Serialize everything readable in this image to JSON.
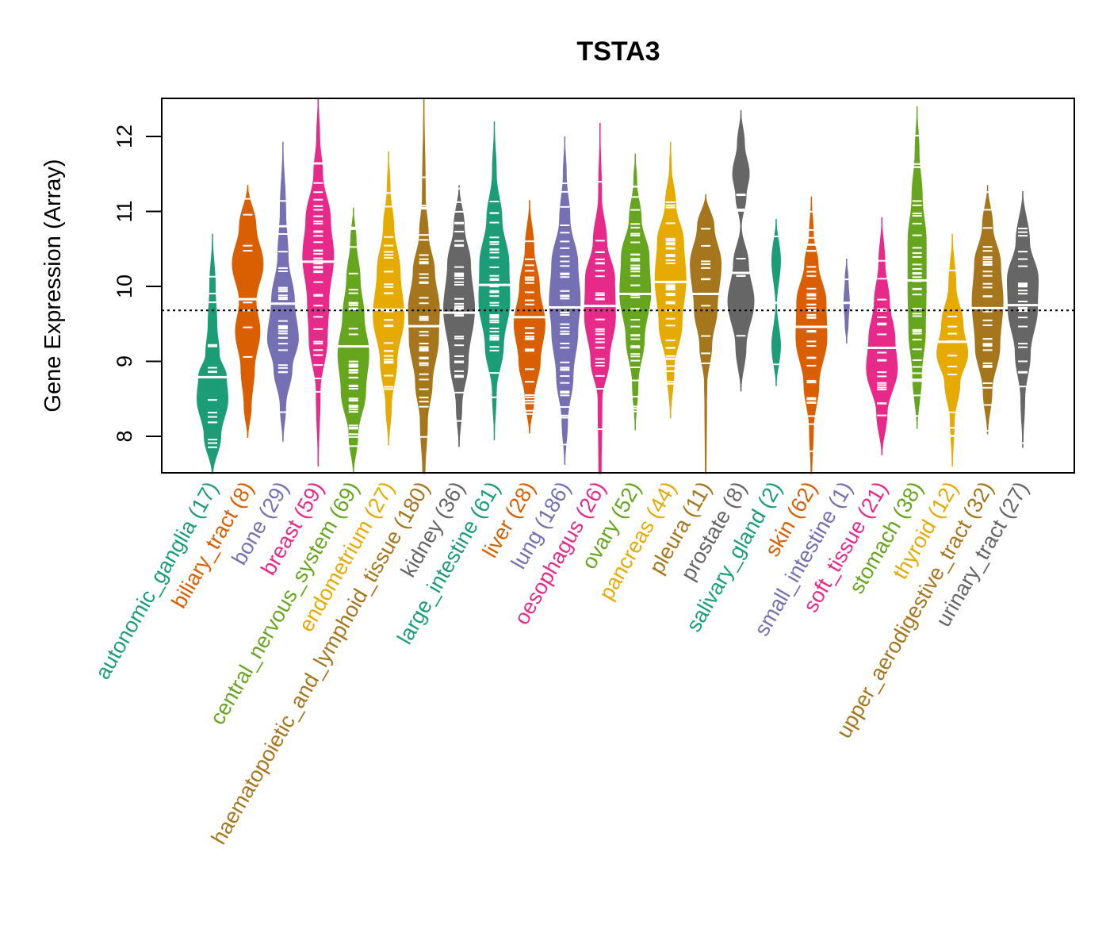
{
  "chart_data": {
    "type": "violin",
    "title": "TSTA3",
    "xlabel": "",
    "ylabel": "Gene Expression (Array)",
    "ylim": [
      7.5,
      12.5
    ],
    "yticks": [
      8,
      9,
      10,
      11,
      12
    ],
    "reference_line": 9.68,
    "grid": false,
    "legend": "none",
    "categories": [
      {
        "name": "autonomic_ganglia",
        "n": 17,
        "color": "#1B9E77",
        "min": 7.5,
        "max": 10.7,
        "median": 8.79,
        "density": [
          [
            7.5,
            0.05
          ],
          [
            8.0,
            0.55
          ],
          [
            8.5,
            1.0
          ],
          [
            8.8,
            0.9
          ],
          [
            9.1,
            0.45
          ],
          [
            9.5,
            0.3
          ],
          [
            10.0,
            0.2
          ],
          [
            10.7,
            0.02
          ]
        ]
      },
      {
        "name": "biliary_tract",
        "n": 8,
        "color": "#D95F02",
        "min": 7.98,
        "max": 11.35,
        "median": 9.83,
        "density": [
          [
            7.98,
            0.03
          ],
          [
            8.4,
            0.25
          ],
          [
            8.9,
            0.45
          ],
          [
            9.4,
            0.8
          ],
          [
            9.8,
            0.55
          ],
          [
            10.3,
            1.0
          ],
          [
            10.8,
            0.55
          ],
          [
            11.35,
            0.03
          ]
        ]
      },
      {
        "name": "bone",
        "n": 29,
        "color": "#7570B3",
        "min": 7.93,
        "max": 11.93,
        "median": 9.77,
        "density": [
          [
            7.93,
            0.03
          ],
          [
            8.4,
            0.2
          ],
          [
            8.9,
            0.6
          ],
          [
            9.3,
            1.0
          ],
          [
            9.8,
            0.75
          ],
          [
            10.4,
            0.35
          ],
          [
            11.0,
            0.2
          ],
          [
            11.93,
            0.02
          ]
        ]
      },
      {
        "name": "breast",
        "n": 59,
        "color": "#E7298A",
        "min": 7.6,
        "max": 12.5,
        "median": 10.33,
        "density": [
          [
            7.6,
            0.03
          ],
          [
            8.6,
            0.15
          ],
          [
            9.3,
            0.6
          ],
          [
            9.8,
            0.7
          ],
          [
            10.4,
            1.0
          ],
          [
            10.9,
            0.8
          ],
          [
            11.5,
            0.3
          ],
          [
            12.0,
            0.12
          ],
          [
            12.5,
            0.03
          ]
        ]
      },
      {
        "name": "central_nervous_system",
        "n": 69,
        "color": "#66A61E",
        "min": 7.5,
        "max": 11.05,
        "median": 9.2,
        "density": [
          [
            7.5,
            0.03
          ],
          [
            8.0,
            0.3
          ],
          [
            8.6,
            0.8
          ],
          [
            9.1,
            1.0
          ],
          [
            9.6,
            0.7
          ],
          [
            10.1,
            0.45
          ],
          [
            10.6,
            0.2
          ],
          [
            11.05,
            0.02
          ]
        ]
      },
      {
        "name": "endometrium",
        "n": 27,
        "color": "#E6AB02",
        "min": 7.88,
        "max": 11.8,
        "median": 9.69,
        "density": [
          [
            7.88,
            0.03
          ],
          [
            8.4,
            0.2
          ],
          [
            9.0,
            0.55
          ],
          [
            9.6,
            1.0
          ],
          [
            10.2,
            0.75
          ],
          [
            10.8,
            0.35
          ],
          [
            11.3,
            0.12
          ],
          [
            11.8,
            0.02
          ]
        ]
      },
      {
        "name": "haematopoietic_and_lymphoid_tissue",
        "n": 180,
        "color": "#A6761D",
        "min": 7.5,
        "max": 12.5,
        "median": 9.47,
        "density": [
          [
            7.5,
            0.1
          ],
          [
            8.2,
            0.25
          ],
          [
            8.7,
            0.55
          ],
          [
            9.3,
            0.95
          ],
          [
            9.7,
            1.0
          ],
          [
            10.2,
            0.7
          ],
          [
            10.7,
            0.3
          ],
          [
            11.2,
            0.12
          ],
          [
            12.5,
            0.03
          ]
        ]
      },
      {
        "name": "kidney",
        "n": 36,
        "color": "#666666",
        "min": 7.86,
        "max": 11.35,
        "median": 9.65,
        "density": [
          [
            7.86,
            0.03
          ],
          [
            8.4,
            0.2
          ],
          [
            9.0,
            0.6
          ],
          [
            9.7,
            1.0
          ],
          [
            10.3,
            0.75
          ],
          [
            10.8,
            0.35
          ],
          [
            11.35,
            0.02
          ]
        ]
      },
      {
        "name": "large_intestine",
        "n": 61,
        "color": "#1B9E77",
        "min": 7.95,
        "max": 12.2,
        "median": 10.02,
        "density": [
          [
            7.95,
            0.02
          ],
          [
            8.6,
            0.15
          ],
          [
            9.2,
            0.6
          ],
          [
            9.8,
            1.0
          ],
          [
            10.3,
            0.95
          ],
          [
            10.9,
            0.5
          ],
          [
            11.5,
            0.15
          ],
          [
            12.2,
            0.02
          ]
        ]
      },
      {
        "name": "liver",
        "n": 28,
        "color": "#D95F02",
        "min": 8.04,
        "max": 11.15,
        "median": 9.59,
        "density": [
          [
            8.04,
            0.03
          ],
          [
            8.5,
            0.3
          ],
          [
            9.0,
            0.7
          ],
          [
            9.5,
            1.0
          ],
          [
            10.0,
            0.65
          ],
          [
            10.5,
            0.3
          ],
          [
            11.15,
            0.02
          ]
        ]
      },
      {
        "name": "lung",
        "n": 186,
        "color": "#7570B3",
        "min": 7.62,
        "max": 12.0,
        "median": 9.72,
        "density": [
          [
            7.62,
            0.03
          ],
          [
            8.2,
            0.2
          ],
          [
            8.8,
            0.55
          ],
          [
            9.4,
            0.85
          ],
          [
            9.8,
            1.0
          ],
          [
            10.3,
            0.85
          ],
          [
            10.9,
            0.35
          ],
          [
            11.5,
            0.12
          ],
          [
            12.0,
            0.02
          ]
        ]
      },
      {
        "name": "oesophagus",
        "n": 26,
        "color": "#E7298A",
        "min": 7.5,
        "max": 12.18,
        "median": 9.74,
        "density": [
          [
            7.5,
            0.1
          ],
          [
            8.5,
            0.15
          ],
          [
            9.0,
            0.6
          ],
          [
            9.6,
            1.0
          ],
          [
            10.1,
            0.95
          ],
          [
            10.6,
            0.45
          ],
          [
            11.2,
            0.12
          ],
          [
            12.18,
            0.02
          ]
        ]
      },
      {
        "name": "ovary",
        "n": 52,
        "color": "#66A61E",
        "min": 8.08,
        "max": 11.77,
        "median": 9.9,
        "density": [
          [
            8.08,
            0.03
          ],
          [
            8.7,
            0.2
          ],
          [
            9.3,
            0.6
          ],
          [
            9.9,
            1.0
          ],
          [
            10.4,
            0.9
          ],
          [
            10.9,
            0.4
          ],
          [
            11.4,
            0.12
          ],
          [
            11.77,
            0.02
          ]
        ]
      },
      {
        "name": "pancreas",
        "n": 44,
        "color": "#E6AB02",
        "min": 8.24,
        "max": 11.93,
        "median": 10.06,
        "density": [
          [
            8.24,
            0.03
          ],
          [
            8.9,
            0.25
          ],
          [
            9.5,
            0.75
          ],
          [
            10.1,
            1.0
          ],
          [
            10.6,
            0.85
          ],
          [
            11.1,
            0.35
          ],
          [
            11.6,
            0.08
          ],
          [
            11.93,
            0.02
          ]
        ]
      },
      {
        "name": "pleura",
        "n": 11,
        "color": "#A6761D",
        "min": 7.5,
        "max": 11.23,
        "median": 9.9,
        "density": [
          [
            7.5,
            0.05
          ],
          [
            8.4,
            0.08
          ],
          [
            8.7,
            0.1
          ],
          [
            9.2,
            0.4
          ],
          [
            9.7,
            0.75
          ],
          [
            10.3,
            1.0
          ],
          [
            10.8,
            0.55
          ],
          [
            11.23,
            0.02
          ]
        ]
      },
      {
        "name": "prostate",
        "n": 8,
        "color": "#666666",
        "min": 8.6,
        "max": 12.35,
        "median": 10.18,
        "density": [
          [
            8.6,
            0.03
          ],
          [
            9.2,
            0.35
          ],
          [
            9.8,
            0.85
          ],
          [
            10.3,
            0.5
          ],
          [
            10.8,
            0.05
          ],
          [
            11.2,
            0.35
          ],
          [
            11.5,
            0.55
          ],
          [
            11.9,
            0.25
          ],
          [
            12.35,
            0.02
          ]
        ]
      },
      {
        "name": "salivary_gland",
        "n": 2,
        "color": "#1B9E77",
        "min": 8.67,
        "max": 10.9,
        "median": 9.78,
        "density": [
          [
            8.67,
            0.02
          ],
          [
            9.2,
            0.3
          ],
          [
            9.75,
            0.05
          ],
          [
            10.35,
            0.3
          ],
          [
            10.9,
            0.02
          ]
        ]
      },
      {
        "name": "skin",
        "n": 62,
        "color": "#D95F02",
        "min": 7.5,
        "max": 11.2,
        "median": 9.46,
        "density": [
          [
            7.5,
            0.05
          ],
          [
            8.1,
            0.15
          ],
          [
            8.7,
            0.5
          ],
          [
            9.3,
            1.0
          ],
          [
            9.8,
            0.95
          ],
          [
            10.3,
            0.45
          ],
          [
            10.7,
            0.15
          ],
          [
            11.2,
            0.02
          ]
        ]
      },
      {
        "name": "small_intestine",
        "n": 1,
        "color": "#7570B3",
        "min": 9.24,
        "max": 10.37,
        "median": 9.78,
        "density": [
          [
            9.24,
            0.02
          ],
          [
            9.5,
            0.12
          ],
          [
            9.78,
            0.2
          ],
          [
            10.1,
            0.12
          ],
          [
            10.37,
            0.02
          ]
        ]
      },
      {
        "name": "soft_tissue",
        "n": 21,
        "color": "#E7298A",
        "min": 7.75,
        "max": 10.92,
        "median": 9.18,
        "density": [
          [
            7.75,
            0.03
          ],
          [
            8.3,
            0.35
          ],
          [
            8.9,
            1.0
          ],
          [
            9.3,
            0.85
          ],
          [
            9.8,
            0.5
          ],
          [
            10.3,
            0.22
          ],
          [
            10.92,
            0.02
          ]
        ]
      },
      {
        "name": "stomach",
        "n": 38,
        "color": "#66A61E",
        "min": 8.1,
        "max": 12.4,
        "median": 10.08,
        "density": [
          [
            8.1,
            0.03
          ],
          [
            8.8,
            0.3
          ],
          [
            9.4,
            0.55
          ],
          [
            10.0,
            0.6
          ],
          [
            10.6,
            0.6
          ],
          [
            11.2,
            0.35
          ],
          [
            11.8,
            0.15
          ],
          [
            12.4,
            0.02
          ]
        ]
      },
      {
        "name": "thyroid",
        "n": 12,
        "color": "#E6AB02",
        "min": 7.6,
        "max": 10.7,
        "median": 9.26,
        "density": [
          [
            7.6,
            0.03
          ],
          [
            8.2,
            0.15
          ],
          [
            8.7,
            0.5
          ],
          [
            9.1,
            1.0
          ],
          [
            9.5,
            0.7
          ],
          [
            10.0,
            0.25
          ],
          [
            10.7,
            0.02
          ]
        ]
      },
      {
        "name": "upper_aerodigestive_tract",
        "n": 32,
        "color": "#A6761D",
        "min": 8.03,
        "max": 11.35,
        "median": 9.71,
        "density": [
          [
            8.03,
            0.03
          ],
          [
            8.6,
            0.3
          ],
          [
            9.2,
            0.8
          ],
          [
            9.8,
            1.0
          ],
          [
            10.3,
            0.85
          ],
          [
            10.8,
            0.35
          ],
          [
            11.35,
            0.02
          ]
        ]
      },
      {
        "name": "urinary_tract",
        "n": 27,
        "color": "#666666",
        "min": 7.85,
        "max": 11.27,
        "median": 9.75,
        "density": [
          [
            7.85,
            0.03
          ],
          [
            8.5,
            0.15
          ],
          [
            9.1,
            0.5
          ],
          [
            9.7,
            0.95
          ],
          [
            10.1,
            1.0
          ],
          [
            10.6,
            0.45
          ],
          [
            11.27,
            0.02
          ]
        ]
      }
    ]
  }
}
